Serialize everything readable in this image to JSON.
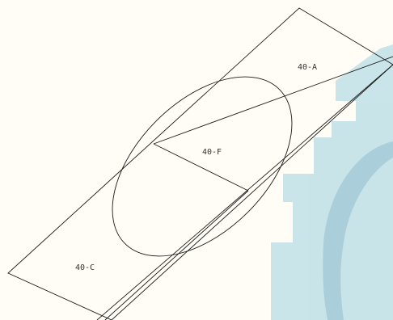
{
  "diagram": {
    "labels": {
      "region_a": "40-A",
      "region_f": "40-F",
      "region_c": "40-C"
    },
    "colors": {
      "background": "#fffdf5",
      "line": "#1a1a1a",
      "watermark_light": "#b8dce6",
      "watermark_dark": "#8fc0d2"
    },
    "watermark": "gear-shape"
  }
}
